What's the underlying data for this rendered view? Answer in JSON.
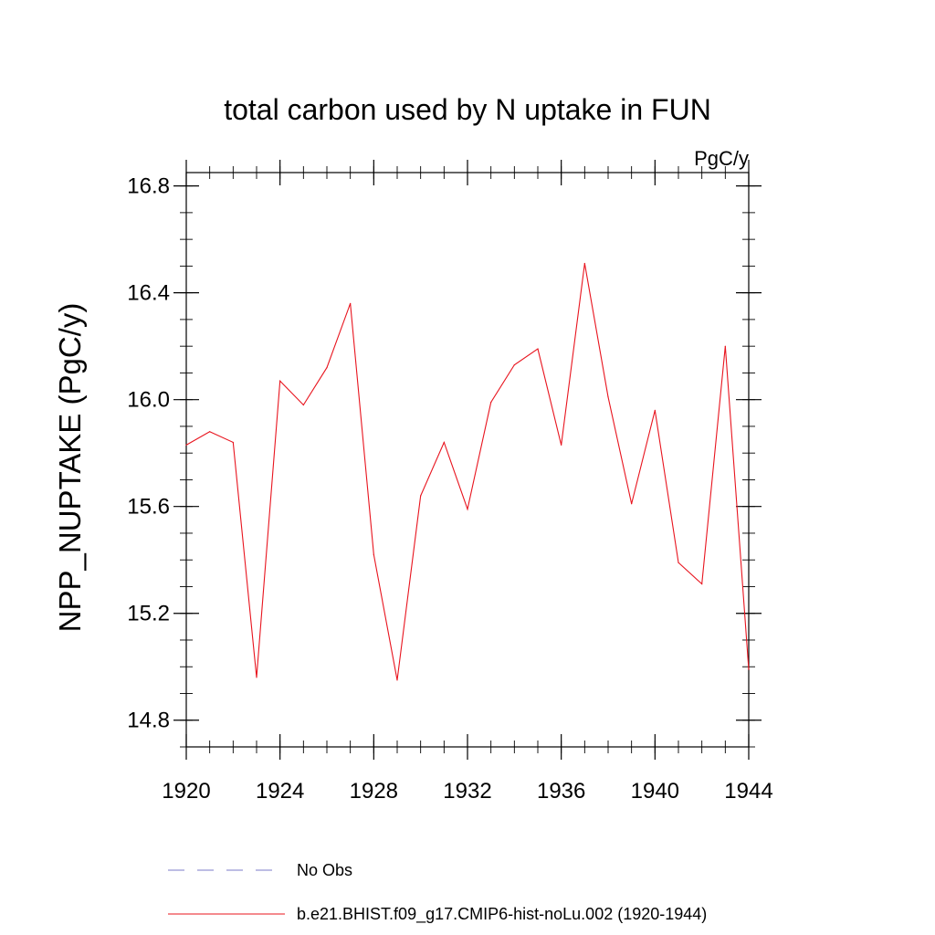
{
  "chart_data": {
    "type": "line",
    "title": "total carbon used by N uptake in FUN",
    "units_label": "PgC/y",
    "xlabel": "",
    "ylabel": "NPP_NUPTAKE  (PgC/y)",
    "xlim": [
      1920,
      1944
    ],
    "ylim": [
      14.7,
      16.85
    ],
    "x_ticks": [
      1920,
      1924,
      1928,
      1932,
      1936,
      1940,
      1944
    ],
    "x_tick_labels": [
      "1920",
      "1924",
      "1928",
      "1932",
      "1936",
      "1940",
      "1944"
    ],
    "y_ticks": [
      14.8,
      15.2,
      15.6,
      16.0,
      16.4,
      16.8
    ],
    "y_tick_labels": [
      "14.8",
      "15.2",
      "15.6",
      "16.0",
      "16.4",
      "16.8"
    ],
    "grid": false,
    "legend_position": "bottom",
    "series": [
      {
        "name": "b.e21.BHIST.f09_g17.CMIP6-hist-noLu.002 (1920-1944)",
        "color": "#e8141e",
        "line_style": "solid",
        "x": [
          1920,
          1921,
          1922,
          1923,
          1924,
          1925,
          1926,
          1927,
          1928,
          1929,
          1930,
          1931,
          1932,
          1933,
          1934,
          1935,
          1936,
          1937,
          1938,
          1939,
          1940,
          1941,
          1942,
          1943,
          1944
        ],
        "y": [
          15.83,
          15.88,
          15.84,
          14.96,
          16.07,
          15.98,
          16.12,
          16.36,
          15.42,
          14.95,
          15.64,
          15.84,
          15.59,
          15.99,
          16.13,
          16.19,
          15.83,
          16.51,
          16.01,
          15.61,
          15.96,
          15.39,
          15.31,
          16.2,
          14.99
        ]
      }
    ],
    "legend": [
      {
        "label": "No Obs",
        "color": "#7b7bc8",
        "line_style": "dashed"
      },
      {
        "label": "b.e21.BHIST.f09_g17.CMIP6-hist-noLu.002 (1920-1944)",
        "color": "#e8141e",
        "line_style": "solid"
      }
    ]
  }
}
